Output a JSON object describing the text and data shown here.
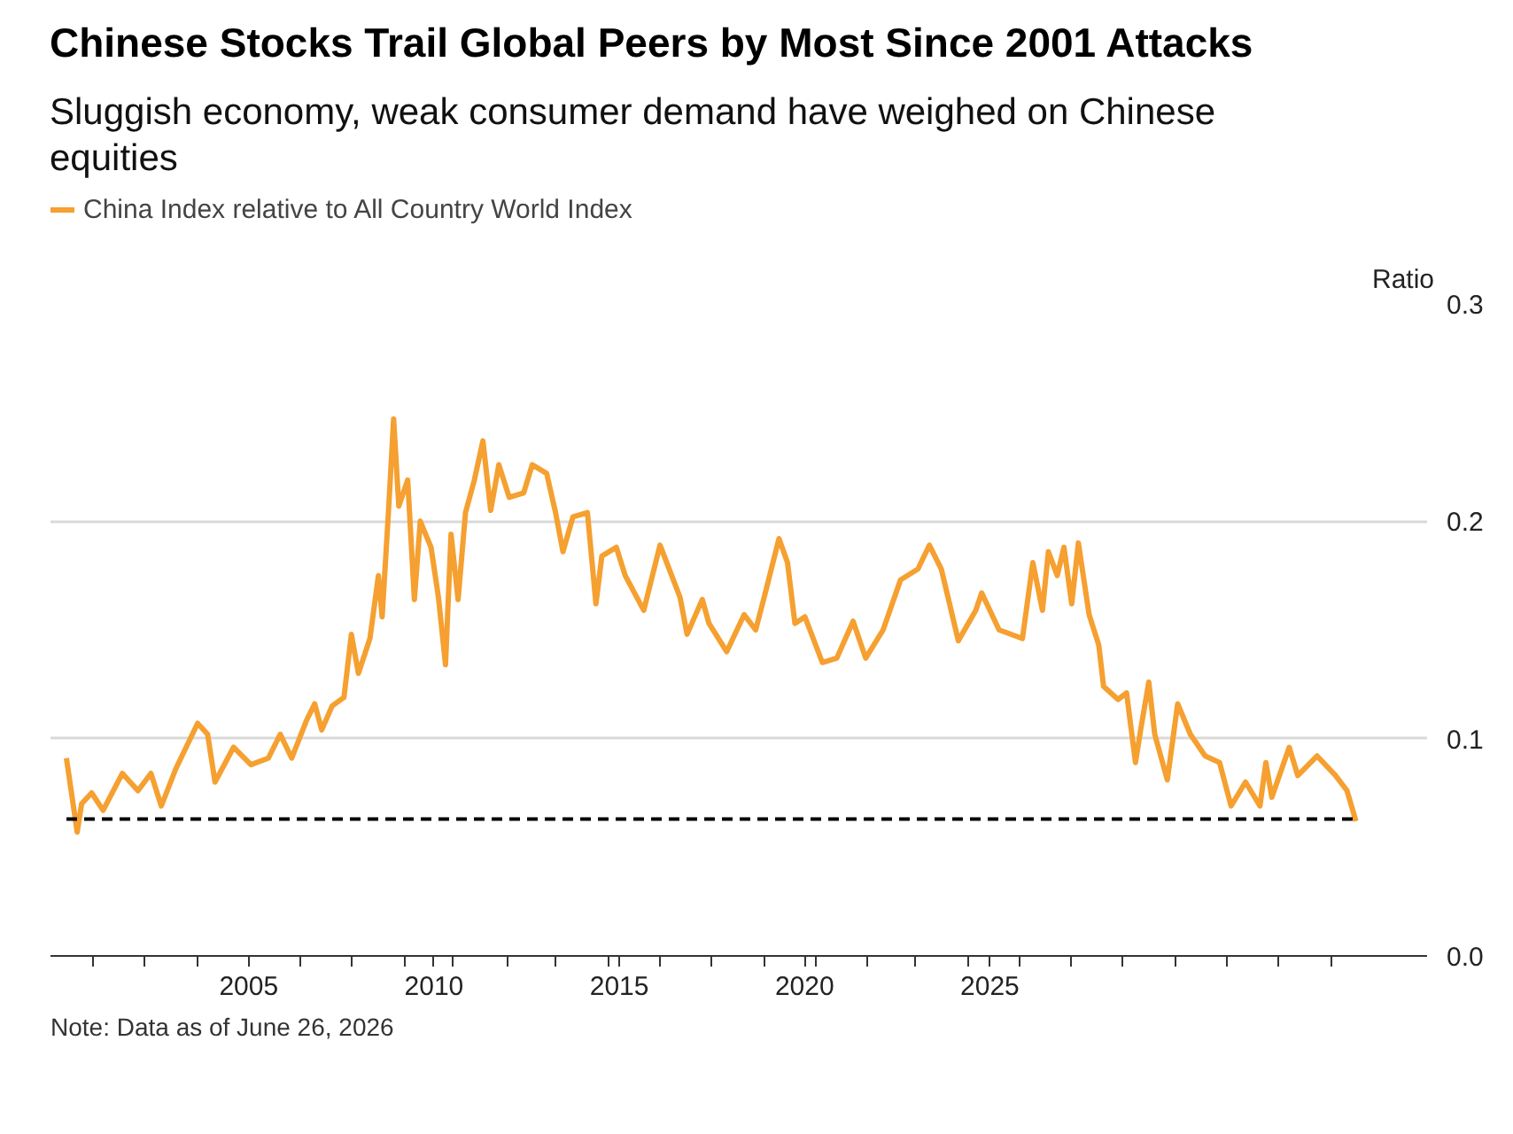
{
  "chart_data": {
    "type": "line",
    "title": "Chinese Stocks Trail Global Peers by Most Since 2001 Attacks",
    "subtitle": "Sluggish economy, weak consumer demand have weighed on Chinese equities",
    "ylabel": "Ratio",
    "annotations": [
      "Note: Data as of June 26, 2026"
    ],
    "xlim": [
      1999.65,
      2036.8
    ],
    "xticks": [
      {
        "value": 2000.8,
        "label": null
      },
      {
        "value": 2002.2,
        "label": null
      },
      {
        "value": 2003.6,
        "label": null
      },
      2005,
      {
        "value": 2006.4,
        "label": null
      },
      {
        "value": 2007.8,
        "label": null
      },
      {
        "value": 2009.2,
        "label": null
      },
      2010,
      {
        "value": 2010.5,
        "label": null
      },
      {
        "value": 2012.0,
        "label": null
      },
      {
        "value": 2013.3,
        "label": null
      },
      {
        "value": 2014.7,
        "label": null
      },
      2015,
      {
        "value": 2016.1,
        "label": null
      },
      {
        "value": 2017.5,
        "label": null
      },
      {
        "value": 2018.9,
        "label": null
      },
      2020,
      {
        "value": 2020.3,
        "label": null
      },
      {
        "value": 2021.7,
        "label": null
      },
      {
        "value": 2023.0,
        "label": null
      },
      {
        "value": 2024.4,
        "label": null
      },
      2025,
      {
        "value": 2025.8,
        "label": null
      },
      {
        "value": 2027.2,
        "label": null
      },
      {
        "value": 2028.6,
        "label": null
      },
      {
        "value": 2030.0,
        "label": null
      },
      {
        "value": 2031.4,
        "label": null
      },
      {
        "value": 2032.8,
        "label": null
      },
      {
        "value": 2034.2,
        "label": null
      }
    ],
    "ylim": [
      0,
      0.3
    ],
    "yticks": [
      {
        "value": 0,
        "label": "0.0"
      },
      0.1,
      0.2,
      0.3
    ],
    "grid": "y",
    "legend": "top left",
    "line_style": "solid",
    "ref_lines": [
      {
        "axis": "y",
        "value": 0.063,
        "label": null,
        "color": "#000000",
        "line_style": "dashed"
      }
    ],
    "series": [
      {
        "name": "China Index relative to All Country World Index",
        "color": "#f5a030",
        "x": [
          2000.08,
          2000.37,
          2000.49,
          2000.76,
          2001.07,
          2001.59,
          2002.01,
          2002.36,
          2002.64,
          2003.03,
          2003.62,
          2003.89,
          2004.09,
          2004.59,
          2005.06,
          2005.53,
          2005.85,
          2006.16,
          2006.55,
          2006.78,
          2006.97,
          2007.25,
          2007.57,
          2007.77,
          2007.96,
          2008.27,
          2008.5,
          2008.6,
          2008.77,
          2008.91,
          2009.05,
          2009.29,
          2009.47,
          2009.63,
          2009.92,
          2010.12,
          2010.31,
          2010.46,
          2010.65,
          2010.85,
          2011.09,
          2011.32,
          2011.53,
          2011.75,
          2012.03,
          2012.42,
          2012.65,
          2013.04,
          2013.28,
          2013.48,
          2013.75,
          2014.14,
          2014.37,
          2014.53,
          2014.92,
          2015.16,
          2015.66,
          2016.1,
          2016.64,
          2016.83,
          2017.24,
          2017.42,
          2017.9,
          2018.37,
          2018.68,
          2018.91,
          2019.31,
          2019.54,
          2019.74,
          2020.01,
          2020.48,
          2020.87,
          2021.31,
          2021.65,
          2022.12,
          2022.59,
          2023.06,
          2023.37,
          2023.69,
          2024.15,
          2024.62,
          2024.78,
          2025.25,
          2025.88,
          2026.16,
          2026.42,
          2026.58,
          2026.82,
          2027.0,
          2027.21,
          2027.39,
          2027.68,
          2027.94,
          2028.07,
          2028.46,
          2028.69,
          2028.93,
          2029.08,
          2029.29,
          2029.45,
          2029.79,
          2030.07,
          2030.41,
          2030.81,
          2031.2,
          2031.51,
          2031.9,
          2032.29,
          2032.45,
          2032.61,
          2033.08,
          2033.31,
          2033.83,
          2034.33,
          2034.64,
          2034.88
        ],
        "values": [
          0.091,
          0.057,
          0.07,
          0.075,
          0.067,
          0.084,
          0.076,
          0.084,
          0.069,
          0.086,
          0.107,
          0.102,
          0.08,
          0.096,
          0.088,
          0.091,
          0.102,
          0.091,
          0.108,
          0.116,
          0.104,
          0.115,
          0.119,
          0.148,
          0.13,
          0.146,
          0.175,
          0.156,
          0.204,
          0.247,
          0.207,
          0.219,
          0.164,
          0.2,
          0.188,
          0.165,
          0.134,
          0.194,
          0.164,
          0.204,
          0.219,
          0.237,
          0.205,
          0.226,
          0.211,
          0.213,
          0.226,
          0.222,
          0.204,
          0.186,
          0.202,
          0.204,
          0.162,
          0.184,
          0.188,
          0.175,
          0.159,
          0.189,
          0.165,
          0.148,
          0.164,
          0.153,
          0.14,
          0.157,
          0.15,
          0.165,
          0.192,
          0.181,
          0.153,
          0.156,
          0.135,
          0.137,
          0.154,
          0.137,
          0.15,
          0.173,
          0.178,
          0.189,
          0.178,
          0.145,
          0.159,
          0.167,
          0.15,
          0.146,
          0.181,
          0.159,
          0.186,
          0.175,
          0.188,
          0.162,
          0.19,
          0.157,
          0.143,
          0.124,
          0.118,
          0.121,
          0.089,
          0.105,
          0.126,
          0.102,
          0.081,
          0.116,
          0.102,
          0.092,
          0.089,
          0.069,
          0.08,
          0.069,
          0.089,
          0.073,
          0.096,
          0.083,
          0.092,
          0.083,
          0.076,
          0.062
        ]
      }
    ]
  }
}
